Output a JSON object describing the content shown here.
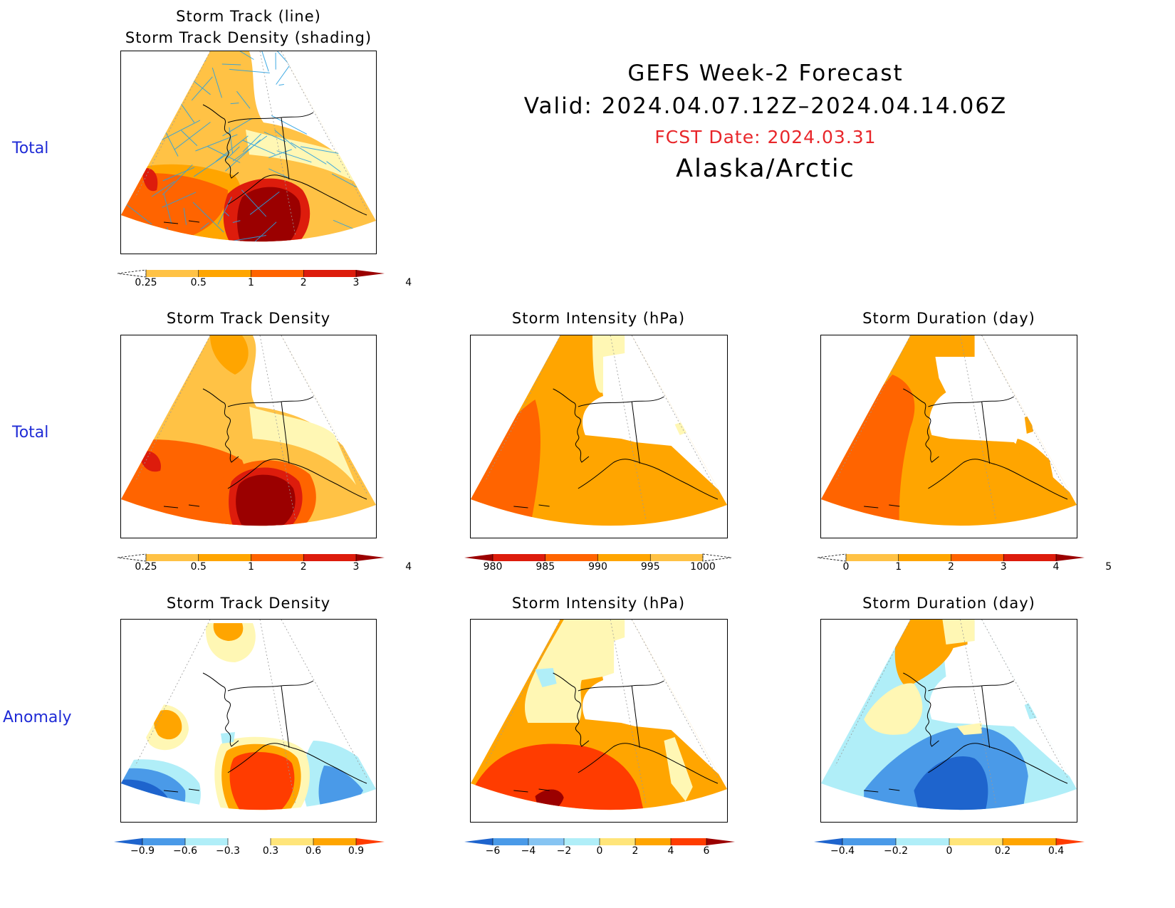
{
  "header": {
    "title": "GEFS Week-2 Forecast",
    "valid": "Valid: 2024.04.07.12Z–2024.04.14.06Z",
    "fcst_date": "FCST Date: 2024.03.31",
    "region": "Alaska/Arctic"
  },
  "rows": [
    {
      "label": "Total"
    },
    {
      "label": "Total"
    },
    {
      "label": "Anomaly"
    }
  ],
  "panels": {
    "top": {
      "title": "Storm Track (line)\nStorm Track Density (shading)"
    },
    "mid_density": {
      "title": "Storm Track Density"
    },
    "mid_intensity": {
      "title": "Storm Intensity (hPa)"
    },
    "mid_duration": {
      "title": "Storm Duration (day)"
    },
    "bot_density": {
      "title": "Storm Track Density"
    },
    "bot_intensity": {
      "title": "Storm Intensity (hPa)"
    },
    "bot_duration": {
      "title": "Storm Duration (day)"
    }
  },
  "colorbars": {
    "density_total": {
      "labels": [
        "0.25",
        "0.5",
        "1",
        "2",
        "3",
        "4"
      ],
      "colors": [
        "#fff7b4",
        "#ffc245",
        "#ffa500",
        "#ff6400",
        "#dd1c0c",
        "#9b0000"
      ],
      "low_dashed": true
    },
    "intensity_total": {
      "labels": [
        "980",
        "985",
        "990",
        "995",
        "1000"
      ],
      "colors": [
        "#9b0000",
        "#dd1c0c",
        "#ff6400",
        "#ffa500",
        "#ffc245",
        "#fff7b4"
      ],
      "high_dashed": true
    },
    "duration_total": {
      "labels": [
        "0",
        "1",
        "2",
        "3",
        "4",
        "5"
      ],
      "colors": [
        "#fff7b4",
        "#ffc245",
        "#ffa500",
        "#ff6400",
        "#dd1c0c",
        "#9b0000"
      ],
      "low_dashed": true
    },
    "density_anom": {
      "labels": [
        "−0.9",
        "−0.6",
        "−0.3",
        "0.3",
        "0.6",
        "0.9"
      ],
      "colors": [
        "#1e64cd",
        "#4a9ae8",
        "#b0eef8",
        "#ffffff",
        "#ffe57a",
        "#ffa500",
        "#ff3c00"
      ]
    },
    "intensity_anom": {
      "labels": [
        "−6",
        "−4",
        "−2",
        "0",
        "2",
        "4",
        "6"
      ],
      "colors": [
        "#1e64cd",
        "#4a9ae8",
        "#86c4f2",
        "#b0eef8",
        "#ffe57a",
        "#ffa500",
        "#ff3c00",
        "#9b0000"
      ]
    },
    "duration_anom": {
      "labels": [
        "−0.4",
        "−0.2",
        "0",
        "0.2",
        "0.4"
      ],
      "colors": [
        "#1e64cd",
        "#4a9ae8",
        "#b0eef8",
        "#ffe57a",
        "#ffa500",
        "#ff3c00"
      ]
    }
  },
  "palette": {
    "light_yellow": "#fff7b4",
    "light_orange": "#ffc245",
    "orange": "#ffa500",
    "dark_orange": "#ff6400",
    "red": "#dd1c0c",
    "dark_red": "#9b0000",
    "light_blue": "#b0eef8",
    "blue": "#4a9ae8",
    "dark_blue": "#1e64cd",
    "track_line": "#2aa0e0",
    "row_label": "#1f2bd6",
    "fcst_date": "#e8262a"
  }
}
